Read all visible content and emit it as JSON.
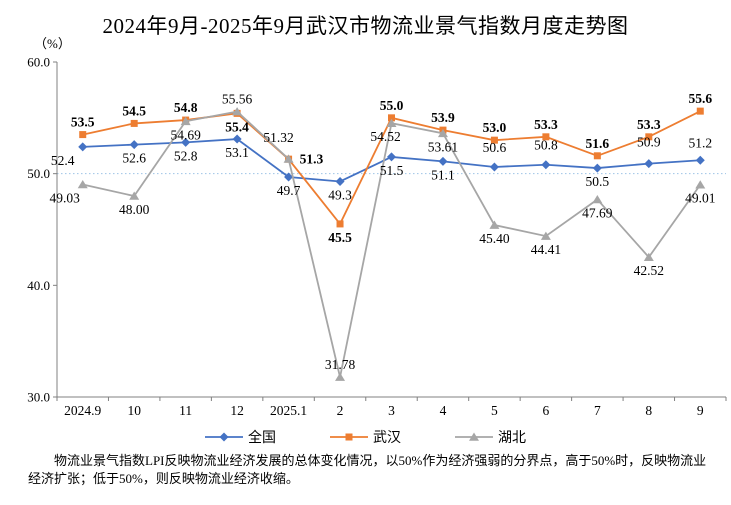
{
  "title": "2024年9月-2025年9月武汉市物流业景气指数月度走势图",
  "unit_label": "（%）",
  "footnote": "物流业景气指数LPI反映物流业经济发展的总体变化情况，以50%作为经济强弱的分界点，高于50%时，反映物流业经济扩张；低于50%，则反映物流业经济收缩。",
  "chart_data": {
    "type": "line",
    "title": "2024年9月-2025年9月武汉市物流业景气指数月度走势图",
    "ylabel": "（%）",
    "categories": [
      "2024.9",
      "10",
      "11",
      "12",
      "2025.1",
      "2",
      "3",
      "4",
      "5",
      "6",
      "7",
      "8",
      "9"
    ],
    "series": [
      {
        "id": "quanguo",
        "name": "全国",
        "color": "#4472C4",
        "marker": "diamond",
        "bold_labels": false,
        "values": [
          52.4,
          52.6,
          52.8,
          53.1,
          49.7,
          49.3,
          51.5,
          51.1,
          50.6,
          50.8,
          50.5,
          50.9,
          51.2
        ],
        "labels": [
          "52.4",
          "52.6",
          "52.8",
          "53.1",
          "49.7",
          "49.3",
          "51.5",
          "51.1",
          "50.6",
          "50.8",
          "50.5",
          "50.9",
          "51.2"
        ],
        "label_pos": [
          "b",
          "b",
          "b",
          "b",
          "b",
          "b",
          "b",
          "b",
          "a",
          "a",
          "b",
          "a",
          "a"
        ],
        "label_offsets": {
          "0": [
            -20,
            0
          ],
          "8": [
            0,
            -7
          ],
          "9": [
            0,
            -7
          ],
          "11": [
            0,
            -9
          ],
          "12": [
            0,
            -5
          ]
        }
      },
      {
        "id": "wuhan",
        "name": "武汉",
        "color": "#ED7D31",
        "marker": "square",
        "bold_labels": true,
        "values": [
          53.5,
          54.5,
          54.8,
          55.4,
          51.3,
          45.5,
          55.0,
          53.9,
          53.0,
          53.3,
          51.6,
          53.3,
          55.6
        ],
        "labels": [
          "53.5",
          "54.5",
          "54.8",
          "55.4",
          "51.3",
          "45.5",
          "55.0",
          "53.9",
          "53.0",
          "53.3",
          "51.6",
          "53.3",
          "55.6"
        ],
        "label_pos": [
          "a",
          "a",
          "a",
          "b",
          "r",
          "b",
          "a",
          "a",
          "a",
          "a",
          "a",
          "a",
          "a"
        ],
        "label_offsets": {}
      },
      {
        "id": "hubei",
        "name": "湖北",
        "color": "#A6A6A6",
        "marker": "triangle",
        "bold_labels": false,
        "values": [
          49.03,
          48.0,
          54.69,
          55.56,
          51.32,
          31.78,
          54.52,
          53.61,
          45.4,
          44.41,
          47.69,
          42.52,
          49.01
        ],
        "labels": [
          "49.03",
          "48.00",
          "54.69",
          "55.56",
          "51.32",
          "31.78",
          "54.52",
          "53.61",
          "45.40",
          "44.41",
          "47.69",
          "42.52",
          "49.01"
        ],
        "label_pos": [
          "b",
          "b",
          "b",
          "a",
          "a",
          "a",
          "b",
          "b",
          "b",
          "b",
          "b",
          "b",
          "b"
        ],
        "label_offsets": {
          "0": [
            -18,
            0
          ],
          "4": [
            -10,
            -9
          ],
          "6": [
            -6,
            0
          ]
        }
      }
    ],
    "ylim": [
      30,
      60
    ],
    "ytick_labels": [
      "60.0",
      "50.0",
      "40.0",
      "30.0"
    ],
    "yticks": [
      60.0,
      50.0,
      40.0,
      30.0
    ],
    "reference_line": {
      "value": 50,
      "style": "dotted",
      "color": "#9DC3E6"
    },
    "axis_color": "#808080",
    "grid": false,
    "legend_position": "bottom"
  }
}
